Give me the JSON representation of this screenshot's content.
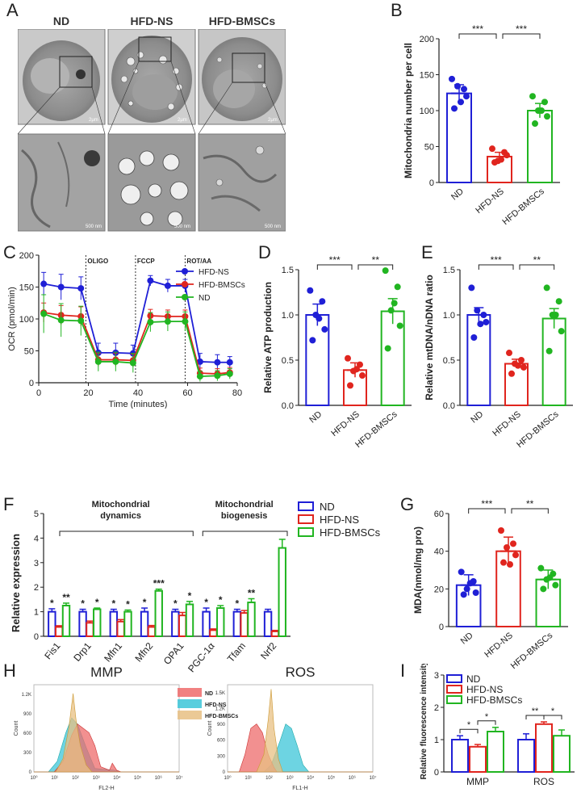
{
  "panel_labels": {
    "A": "A",
    "B": "B",
    "C": "C",
    "D": "D",
    "E": "E",
    "F": "F",
    "G": "G",
    "H": "H",
    "I": "I"
  },
  "micrographs": {
    "groups": [
      "ND",
      "HFD-NS",
      "HFD-BMSCs"
    ],
    "scale_top": "2μm",
    "scale_bottom": "500 nm"
  },
  "colors": {
    "nd": "#1f1fd6",
    "hfdns": "#e0251e",
    "bmsc": "#21b521",
    "text": "#222222"
  },
  "chart_data": [
    {
      "id": "B",
      "type": "bar",
      "categories": [
        "ND",
        "HFD-NS",
        "HFD-BMSCs"
      ],
      "values": [
        124,
        36,
        100
      ],
      "errors": [
        12,
        6,
        10
      ],
      "points": [
        [
          144,
          130,
          134,
          120,
          103,
          112
        ],
        [
          47,
          42,
          30,
          38,
          28,
          32
        ],
        [
          120,
          112,
          100,
          92,
          82,
          100
        ]
      ],
      "ylabel": "Mitochondria number per cell",
      "ylim": [
        0,
        200
      ],
      "yticks": [
        "0",
        "50",
        "100",
        "150",
        "200"
      ],
      "significance": [
        {
          "from": 0,
          "to": 1,
          "label": "***"
        },
        {
          "from": 1,
          "to": 2,
          "label": "***"
        }
      ]
    },
    {
      "id": "C",
      "type": "line",
      "xlabel": "Time (minutes)",
      "ylabel": "OCR (pmol/min)",
      "xlim": [
        0,
        80
      ],
      "ylim": [
        0,
        200
      ],
      "xticks": [
        "0",
        "20",
        "40",
        "60",
        "80"
      ],
      "yticks": [
        "0",
        "50",
        "100",
        "150",
        "200"
      ],
      "x": [
        2,
        9,
        17,
        24,
        31,
        38,
        45,
        52,
        59,
        65,
        72,
        77
      ],
      "annotations": [
        {
          "x": 19,
          "text": "OLIGO"
        },
        {
          "x": 39,
          "text": "FCCP"
        },
        {
          "x": 59,
          "text": "ROT/AA"
        }
      ],
      "series": [
        {
          "name": "HFD-NS",
          "values": [
            155,
            150,
            148,
            47,
            47,
            46,
            160,
            152,
            152,
            33,
            32,
            32
          ],
          "errors": [
            18,
            20,
            18,
            15,
            15,
            13,
            8,
            10,
            10,
            13,
            12,
            9
          ]
        },
        {
          "name": "HFD-BMSCs",
          "values": [
            110,
            106,
            104,
            36,
            36,
            35,
            105,
            104,
            104,
            15,
            14,
            16
          ],
          "errors": [
            15,
            15,
            15,
            10,
            10,
            10,
            10,
            10,
            10,
            8,
            8,
            8
          ]
        },
        {
          "name": "ND",
          "values": [
            108,
            98,
            97,
            33,
            33,
            31,
            95,
            96,
            96,
            10,
            11,
            14
          ],
          "errors": [
            30,
            26,
            23,
            15,
            15,
            15,
            15,
            15,
            15,
            8,
            8,
            8
          ]
        }
      ]
    },
    {
      "id": "D",
      "type": "bar",
      "categories": [
        "ND",
        "HFD-NS",
        "HFD-BMSCs"
      ],
      "values": [
        1.0,
        0.39,
        1.04
      ],
      "errors": [
        0.12,
        0.08,
        0.14
      ],
      "points": [
        [
          1.27,
          1.15,
          1.0,
          0.84,
          0.72,
          0.96
        ],
        [
          0.52,
          0.45,
          0.38,
          0.33,
          0.22,
          0.4
        ],
        [
          1.49,
          1.31,
          1.05,
          0.88,
          0.63,
          1.13
        ]
      ],
      "ylabel": "Relative ATP production",
      "ylim": [
        0,
        1.5
      ],
      "yticks": [
        "0.0",
        "0.5",
        "1.0",
        "1.5"
      ],
      "significance": [
        {
          "from": 0,
          "to": 1,
          "label": "***"
        },
        {
          "from": 1,
          "to": 2,
          "label": "**"
        }
      ]
    },
    {
      "id": "E",
      "type": "bar",
      "categories": [
        "ND",
        "HFD-NS",
        "HFD-BMSCs"
      ],
      "values": [
        1.0,
        0.46,
        0.96
      ],
      "errors": [
        0.08,
        0.05,
        0.11
      ],
      "points": [
        [
          1.3,
          1.0,
          1.05,
          0.92,
          0.75,
          0.9
        ],
        [
          0.58,
          0.5,
          0.46,
          0.42,
          0.35,
          0.44
        ],
        [
          1.3,
          1.15,
          1.0,
          0.82,
          0.6,
          1.0
        ]
      ],
      "ylabel": "Relative mtDNA/nDNA ratio",
      "ylim": [
        0,
        1.5
      ],
      "yticks": [
        "0.0",
        "0.5",
        "1.0",
        "1.5"
      ],
      "significance": [
        {
          "from": 0,
          "to": 1,
          "label": "***"
        },
        {
          "from": 1,
          "to": 2,
          "label": "**"
        }
      ]
    },
    {
      "id": "F",
      "type": "bar",
      "ylabel": "Relative expression",
      "ylim": [
        0,
        5
      ],
      "yticks": [
        "0",
        "1",
        "2",
        "3",
        "4",
        "5"
      ],
      "categories": [
        "Fis1",
        "Drp1",
        "Mfn1",
        "Mfn2",
        "OPA1",
        "PGC-1α",
        "Tfam",
        "Nrf2"
      ],
      "series": [
        {
          "name": "ND",
          "values": [
            1,
            1,
            1,
            1,
            1,
            1,
            1,
            1
          ],
          "errors": [
            0.12,
            0.1,
            0.1,
            0.15,
            0.1,
            0.15,
            0.1,
            0.1
          ]
        },
        {
          "name": "HFD-NS",
          "values": [
            0.38,
            0.55,
            0.6,
            0.38,
            0.85,
            0.25,
            0.95,
            0.2
          ],
          "errors": [
            0.05,
            0.07,
            0.08,
            0.06,
            0.12,
            0.05,
            0.1,
            0.04
          ]
        },
        {
          "name": "HFD-BMSCs",
          "values": [
            1.25,
            1.1,
            1.0,
            1.85,
            1.3,
            1.15,
            1.38,
            3.6
          ],
          "errors": [
            0.1,
            0.05,
            0.07,
            0.07,
            0.12,
            0.1,
            0.15,
            0.35
          ]
        }
      ],
      "stars": [
        "*",
        "**",
        "*",
        "*",
        "*",
        "*",
        "*",
        "***",
        "*",
        "*",
        "*",
        "*",
        "*",
        "**"
      ],
      "groups": [
        {
          "label_lines": [
            "Mitochondrial",
            "dynamics"
          ]
        },
        {
          "label_lines": [
            "Mitochondrial",
            "biogenesis"
          ]
        }
      ]
    },
    {
      "id": "G",
      "type": "bar",
      "categories": [
        "ND",
        "HFD-NS",
        "HFD-BMSCs"
      ],
      "values": [
        22,
        40,
        25
      ],
      "errors": [
        5.5,
        7.5,
        5
      ],
      "points": [
        [
          29,
          24,
          20,
          18,
          17,
          23
        ],
        [
          51,
          44,
          42,
          38,
          34,
          33
        ],
        [
          31,
          28,
          25,
          22,
          20,
          26
        ]
      ],
      "ylabel": "MDA(nmol/mg pro)",
      "ylim": [
        0,
        60
      ],
      "yticks": [
        "0",
        "20",
        "40",
        "60"
      ],
      "significance": [
        {
          "from": 0,
          "to": 1,
          "label": "***"
        },
        {
          "from": 1,
          "to": 2,
          "label": "**"
        }
      ]
    },
    {
      "id": "H1",
      "type": "area",
      "title": "MMP",
      "xlabel": "FL2-H",
      "ylabel": "Count",
      "yticks": [
        "0",
        "300",
        "600",
        "900",
        "1.2K"
      ],
      "xticks": [
        "10⁰",
        "10¹",
        "10²",
        "10³",
        "10⁴",
        "10⁵",
        "10⁶",
        "10⁷"
      ],
      "legend": [
        "ND",
        "HFD-NS",
        "HFD-BMSCs"
      ]
    },
    {
      "id": "H2",
      "type": "area",
      "title": "ROS",
      "xlabel": "FL1-H",
      "ylabel": "Count",
      "yticks": [
        "0",
        "300",
        "600",
        "900",
        "1.2K",
        "1.5K"
      ],
      "xticks": [
        "10⁰",
        "10¹",
        "10²",
        "10³",
        "10⁴",
        "10⁵",
        "10⁶",
        "10⁷"
      ]
    },
    {
      "id": "I",
      "type": "bar",
      "ylabel": "Relative fluorescence intensity",
      "ylim": [
        0,
        3
      ],
      "yticks": [
        "0",
        "1",
        "2",
        "3"
      ],
      "categories": [
        "MMP",
        "ROS"
      ],
      "series": [
        {
          "name": "ND",
          "values": [
            1.0,
            1.0
          ],
          "errors": [
            0.12,
            0.18
          ]
        },
        {
          "name": "HFD-NS",
          "values": [
            0.78,
            1.48
          ],
          "errors": [
            0.07,
            0.07
          ]
        },
        {
          "name": "HFD-BMSCs",
          "values": [
            1.25,
            1.12
          ],
          "errors": [
            0.13,
            0.18
          ]
        }
      ],
      "significance": [
        {
          "text": "*"
        },
        {
          "text": "*"
        },
        {
          "text": "**"
        },
        {
          "text": "*"
        }
      ]
    }
  ]
}
